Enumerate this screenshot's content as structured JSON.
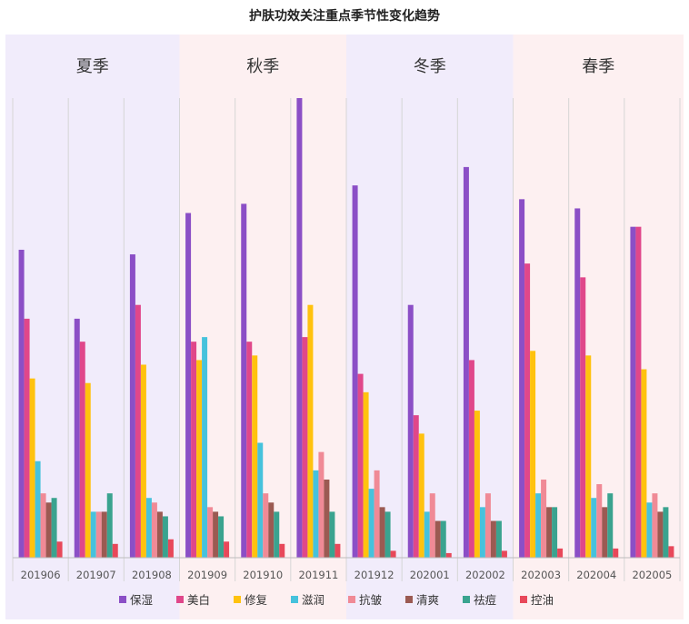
{
  "chart_data": {
    "type": "bar",
    "title": "护肤功效关注重点季节性变化趋势",
    "categories": [
      "201906",
      "201907",
      "201908",
      "201909",
      "201910",
      "201911",
      "201912",
      "202001",
      "202002",
      "202003",
      "202004",
      "202005"
    ],
    "seasons": [
      {
        "label": "夏季",
        "span": [
          0,
          2
        ],
        "color": "#f1ecfb"
      },
      {
        "label": "秋季",
        "span": [
          3,
          5
        ],
        "color": "#fdf0f1"
      },
      {
        "label": "冬季",
        "span": [
          6,
          8
        ],
        "color": "#f1ecfb"
      },
      {
        "label": "春季",
        "span": [
          9,
          11
        ],
        "color": "#fdf0f1"
      }
    ],
    "ylim": [
      0,
      100
    ],
    "grid": false,
    "legend": "bottom",
    "series": [
      {
        "name": "保湿",
        "color": "#8b4fc6",
        "values": [
          67,
          52,
          66,
          75,
          77,
          100,
          81,
          55,
          85,
          78,
          76,
          72
        ]
      },
      {
        "name": "美白",
        "color": "#e0478a",
        "values": [
          52,
          47,
          55,
          47,
          47,
          48,
          40,
          31,
          43,
          64,
          61,
          72
        ]
      },
      {
        "name": "修复",
        "color": "#ffc20e",
        "values": [
          39,
          38,
          42,
          43,
          44,
          55,
          36,
          27,
          32,
          45,
          44,
          41
        ]
      },
      {
        "name": "滋润",
        "color": "#46c2dc",
        "values": [
          21,
          10,
          13,
          48,
          25,
          19,
          15,
          10,
          11,
          14,
          13,
          12
        ]
      },
      {
        "name": "抗皱",
        "color": "#f08a96",
        "values": [
          14,
          10,
          12,
          11,
          14,
          23,
          19,
          14,
          14,
          17,
          16,
          14
        ]
      },
      {
        "name": "清爽",
        "color": "#9b5a52",
        "values": [
          12,
          10,
          10,
          10,
          12,
          17,
          11,
          8,
          8,
          11,
          11,
          10
        ]
      },
      {
        "name": "祛痘",
        "color": "#3aa38f",
        "values": [
          13,
          14,
          9,
          9,
          10,
          10,
          10,
          8,
          8,
          11,
          14,
          11
        ]
      },
      {
        "name": "控油",
        "color": "#e8485a",
        "values": [
          3.5,
          3,
          4,
          3.5,
          3,
          3,
          1.5,
          1,
          1.5,
          2,
          2,
          2.5
        ]
      }
    ]
  }
}
